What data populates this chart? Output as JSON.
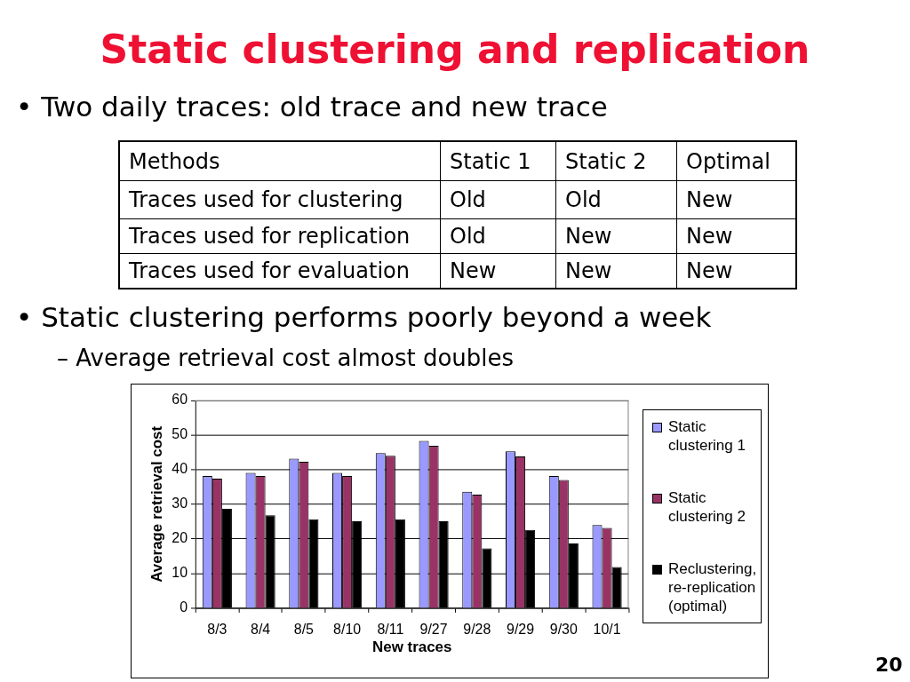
{
  "chart_data": [
    {
      "type": "other",
      "title": "Static clustering and replication",
      "subtitle": "• Two daily traces: old trace and new trace",
      "categories": [
        "Methods",
        "Static 1",
        "Static 2",
        "Optimal"
      ],
      "y_categories": [
        "Traces used for clustering",
        "Traces used for replication",
        "Traces used for evaluation"
      ],
      "cell_labels": [
        [
          "Old",
          "Old",
          "New"
        ],
        [
          "Old",
          "New",
          "New"
        ],
        [
          "New",
          "New",
          "New"
        ]
      ],
      "annotations": [
        "• Static clustering performs poorly beyond a week",
        "– Average retrieval cost almost doubles"
      ]
    },
    {
      "type": "bar",
      "categories": [
        "8/3",
        "8/4",
        "8/5",
        "8/10",
        "8/11",
        "9/27",
        "9/28",
        "9/29",
        "9/30",
        "10/1"
      ],
      "xlabel": "New traces",
      "ylabel": "Average retrieval cost",
      "ylim": [
        0,
        60
      ],
      "yticks": [
        0,
        10,
        20,
        30,
        40,
        50,
        60
      ],
      "grid": "y",
      "legend": "right",
      "series": [
        {
          "name": "Static clustering 1",
          "color": "#9999ff",
          "values": [
            38.2,
            39.1,
            43.2,
            39.1,
            44.8,
            48.3,
            33.6,
            45.3,
            38.2,
            24.0
          ]
        },
        {
          "name": "Static clustering 2",
          "color": "#993366",
          "values": [
            37.4,
            38.2,
            42.3,
            38.2,
            44.0,
            46.9,
            32.8,
            43.8,
            37.0,
            23.2
          ]
        },
        {
          "name": "Reclustering, re-replication (optimal)",
          "color": "#000000",
          "values": [
            28.7,
            26.8,
            25.7,
            25.1,
            25.7,
            25.1,
            17.3,
            22.6,
            18.7,
            11.9
          ]
        }
      ],
      "annotations": [
        "20"
      ]
    }
  ]
}
